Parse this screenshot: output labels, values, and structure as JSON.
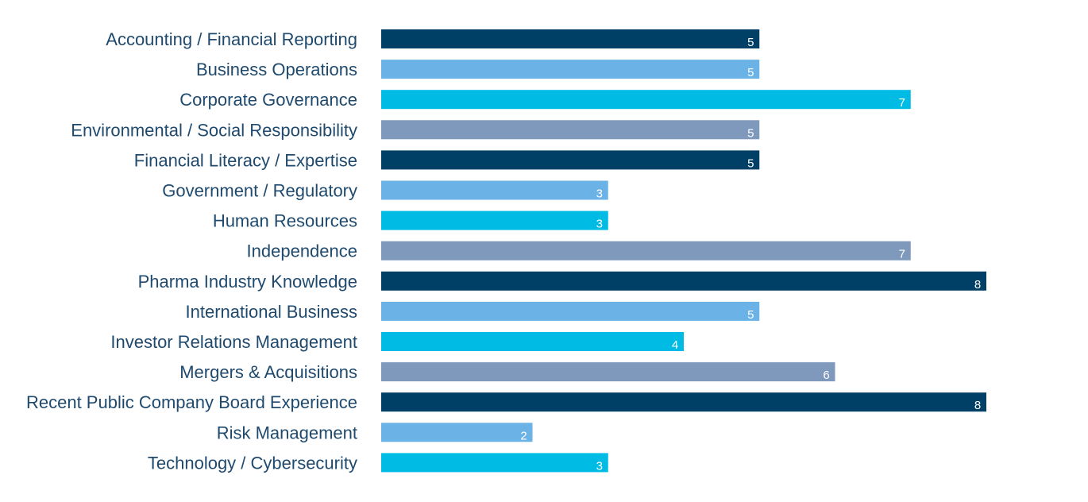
{
  "chart_data": {
    "type": "bar",
    "orientation": "horizontal",
    "categories": [
      "Accounting / Financial Reporting",
      "Business Operations",
      "Corporate Governance",
      "Environmental / Social Responsibility",
      "Financial Literacy / Expertise",
      "Government / Regulatory",
      "Human Resources",
      "Independence",
      "Pharma Industry Knowledge",
      "International Business",
      "Investor Relations Management",
      "Mergers & Acquisitions",
      "Recent Public Company Board Experience",
      "Risk Management",
      "Technology / Cybersecurity"
    ],
    "values": [
      5,
      5,
      7,
      5,
      5,
      3,
      3,
      7,
      8,
      5,
      4,
      6,
      8,
      2,
      3
    ],
    "data_labels": [
      "5",
      "5",
      "7",
      "5",
      "5",
      "3",
      "3",
      "7",
      "8",
      "5",
      "4",
      "6",
      "8",
      "2",
      "3"
    ],
    "bar_colors": [
      "#003f66",
      "#6bb3e6",
      "#00bce4",
      "#7f99bd"
    ],
    "label_color": "#1f4a6e",
    "xlim": [
      0,
      8
    ],
    "grid": false,
    "axes_visible": false
  }
}
